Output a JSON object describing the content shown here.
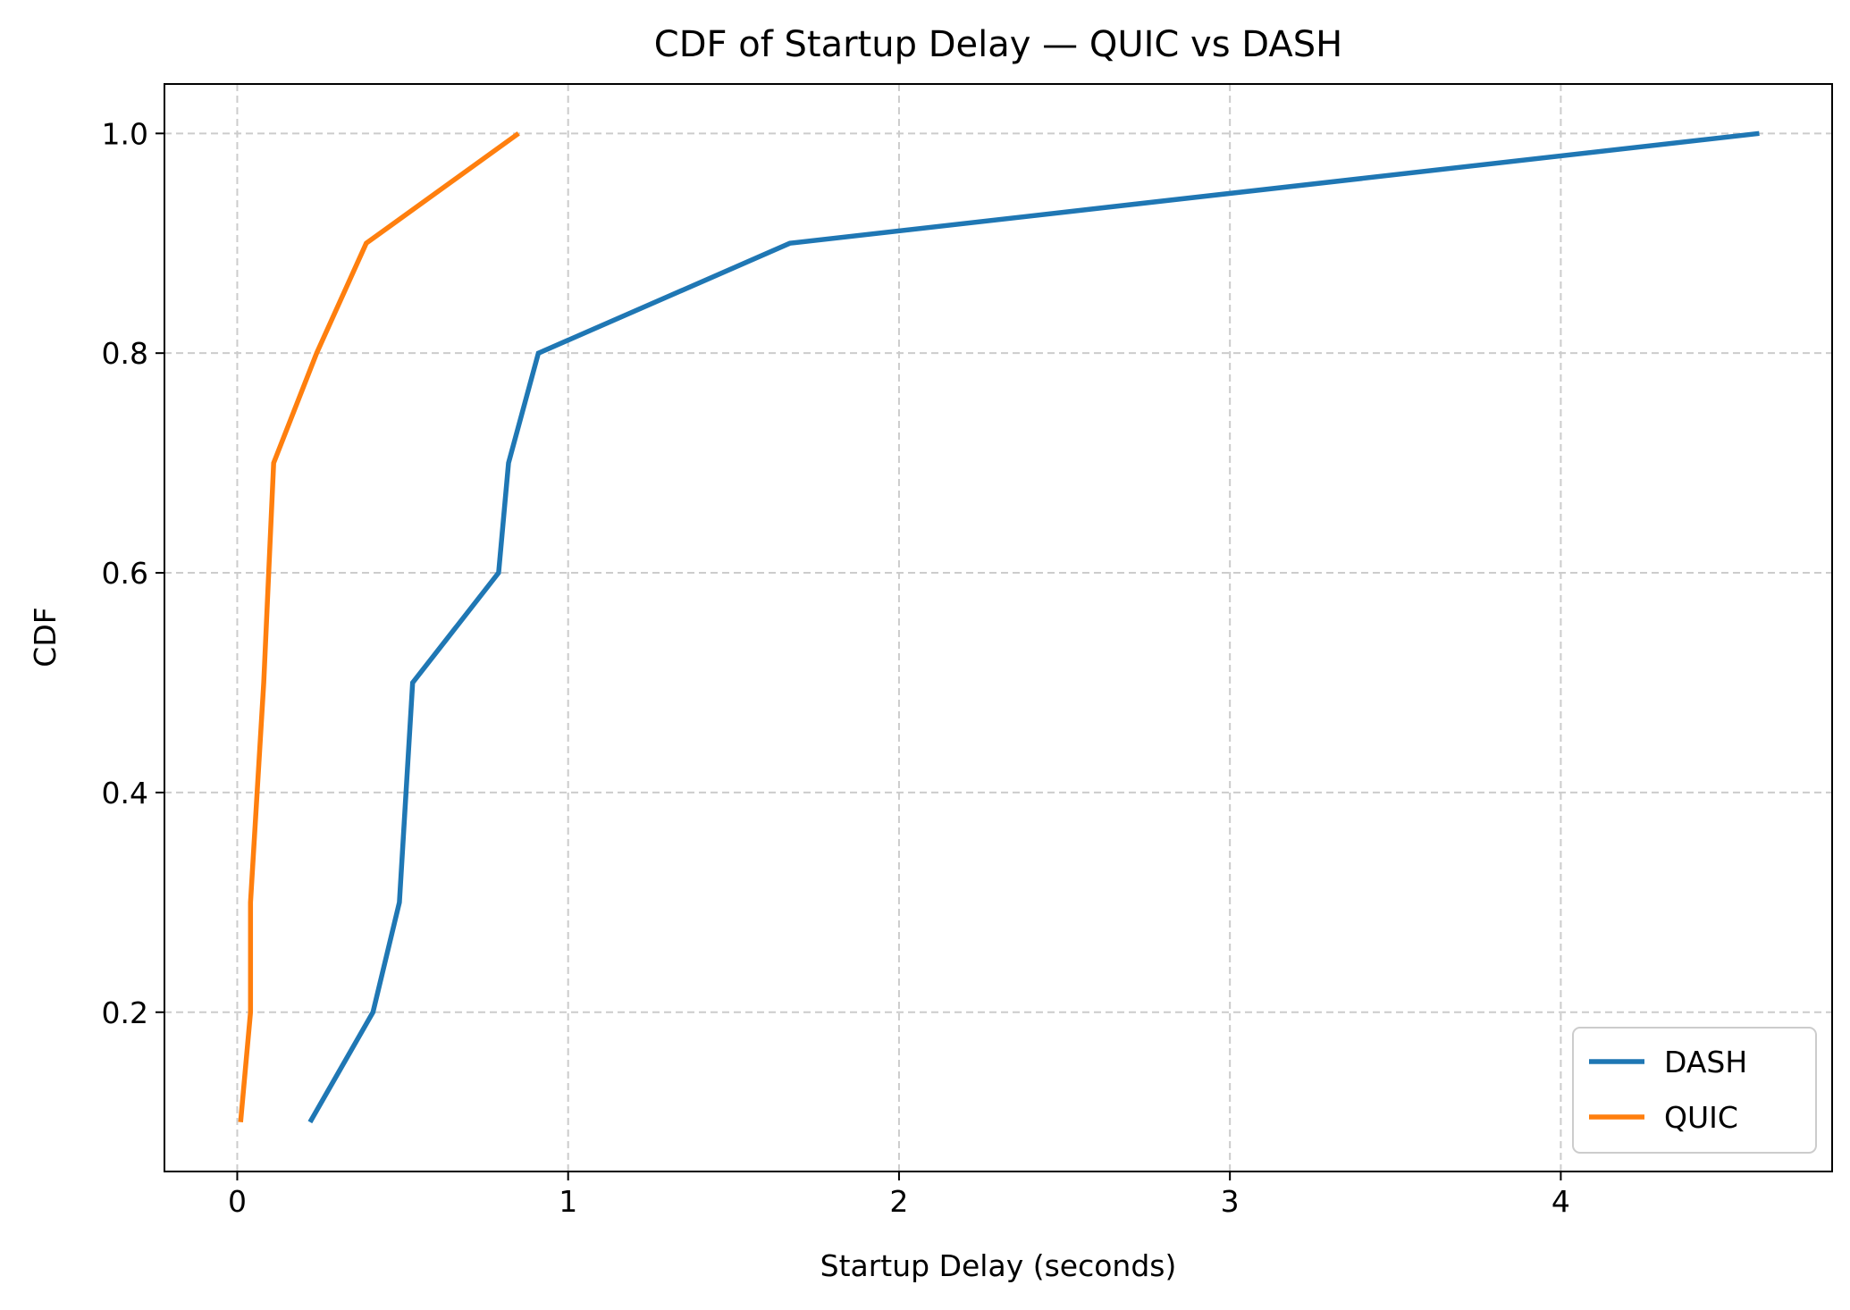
{
  "chart_data": {
    "type": "line",
    "title": "CDF of Startup Delay — QUIC vs DASH",
    "xlabel": "Startup Delay (seconds)",
    "ylabel": "CDF",
    "xlim": [
      -0.22,
      4.82
    ],
    "ylim": [
      0.055,
      1.045
    ],
    "xticks": [
      0,
      1,
      2,
      3,
      4
    ],
    "xtick_labels": [
      "0",
      "1",
      "2",
      "3",
      "4"
    ],
    "yticks": [
      0.2,
      0.4,
      0.6,
      0.8,
      1.0
    ],
    "ytick_labels": [
      "0.2",
      "0.4",
      "0.6",
      "0.8",
      "1.0"
    ],
    "grid": true,
    "legend_position": "lower-right",
    "series": [
      {
        "name": "DASH",
        "color": "#1f77b4",
        "x": [
          0.22,
          0.41,
          0.49,
          0.53,
          0.79,
          0.82,
          0.91,
          1.67,
          4.6
        ],
        "y": [
          0.1,
          0.2,
          0.3,
          0.5,
          0.6,
          0.7,
          0.8,
          0.9,
          1.0
        ]
      },
      {
        "name": "QUIC",
        "color": "#ff7f0e",
        "x": [
          0.01,
          0.04,
          0.04,
          0.08,
          0.11,
          0.24,
          0.39,
          0.85
        ],
        "y": [
          0.1,
          0.2,
          0.3,
          0.5,
          0.7,
          0.8,
          0.9,
          1.0
        ]
      }
    ]
  }
}
